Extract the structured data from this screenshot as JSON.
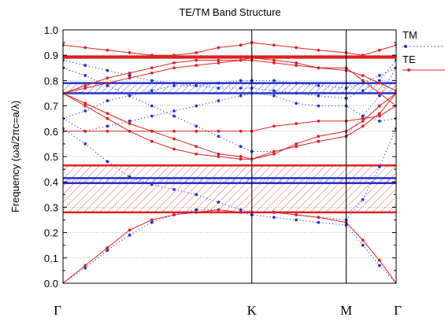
{
  "chart_data": {
    "type": "line",
    "title": "TE/TM Band Structure",
    "ylabel": "Frequency (ωa/2πc=a/λ)",
    "xlabel": "",
    "k_path": [
      "Γ",
      "K",
      "M",
      "Γ"
    ],
    "k_path_positions": [
      0,
      0.5667,
      0.85,
      1.0
    ],
    "ylim": [
      0.0,
      1.0
    ],
    "yticks": [
      "0.0",
      "0.1",
      "0.2",
      "0.3",
      "0.4",
      "0.5",
      "0.6",
      "0.7",
      "0.8",
      "0.9",
      "1.0"
    ],
    "grid": true,
    "legend_position": "right",
    "x": [
      0,
      0.0667,
      0.1333,
      0.2,
      0.2667,
      0.3333,
      0.4,
      0.4667,
      0.5333,
      0.5667,
      0.6333,
      0.7,
      0.7667,
      0.85,
      0.9,
      0.95,
      1.0
    ],
    "series": [
      {
        "name": "TM",
        "color": "#2233dd",
        "style": "dotted",
        "bands": [
          [
            0.0,
            0.06,
            0.13,
            0.19,
            0.24,
            0.27,
            0.29,
            0.29,
            0.28,
            0.27,
            0.26,
            0.25,
            0.24,
            0.23,
            0.15,
            0.07,
            0.0
          ],
          [
            0.61,
            0.55,
            0.48,
            0.42,
            0.39,
            0.37,
            0.35,
            0.32,
            0.29,
            0.28,
            0.28,
            0.27,
            0.26,
            0.25,
            0.33,
            0.46,
            0.61
          ],
          [
            0.65,
            0.6,
            0.62,
            0.64,
            0.66,
            0.68,
            0.7,
            0.72,
            0.74,
            0.75,
            0.74,
            0.71,
            0.7,
            0.7,
            0.66,
            0.64,
            0.65
          ],
          [
            0.65,
            0.68,
            0.72,
            0.74,
            0.76,
            0.78,
            0.78,
            0.79,
            0.8,
            0.8,
            0.8,
            0.79,
            0.78,
            0.77,
            0.79,
            0.82,
            0.85
          ],
          [
            0.85,
            0.82,
            0.78,
            0.74,
            0.7,
            0.66,
            0.62,
            0.58,
            0.54,
            0.52,
            0.52,
            0.54,
            0.56,
            0.58,
            0.66,
            0.74,
            0.85
          ],
          [
            0.88,
            0.86,
            0.84,
            0.82,
            0.8,
            0.79,
            0.78,
            0.77,
            0.77,
            0.77,
            0.76,
            0.75,
            0.74,
            0.73,
            0.76,
            0.8,
            0.88
          ]
        ]
      },
      {
        "name": "TE",
        "color": "#dd2222",
        "style": "solid",
        "bands": [
          [
            0.0,
            0.07,
            0.14,
            0.21,
            0.25,
            0.27,
            0.28,
            0.29,
            0.28,
            0.28,
            0.28,
            0.27,
            0.26,
            0.24,
            0.17,
            0.09,
            0.0
          ],
          [
            0.75,
            0.7,
            0.65,
            0.6,
            0.56,
            0.53,
            0.51,
            0.5,
            0.49,
            0.49,
            0.52,
            0.54,
            0.56,
            0.58,
            0.62,
            0.67,
            0.75
          ],
          [
            0.75,
            0.71,
            0.67,
            0.63,
            0.6,
            0.57,
            0.54,
            0.51,
            0.5,
            0.49,
            0.51,
            0.55,
            0.58,
            0.6,
            0.64,
            0.7,
            0.75
          ],
          [
            0.6,
            0.6,
            0.6,
            0.6,
            0.6,
            0.6,
            0.6,
            0.6,
            0.6,
            0.6,
            0.62,
            0.63,
            0.64,
            0.64,
            0.65,
            0.66,
            0.7
          ],
          [
            0.75,
            0.78,
            0.81,
            0.83,
            0.85,
            0.87,
            0.88,
            0.88,
            0.88,
            0.88,
            0.87,
            0.86,
            0.85,
            0.85,
            0.8,
            0.75,
            0.7
          ],
          [
            0.75,
            0.77,
            0.79,
            0.81,
            0.83,
            0.85,
            0.86,
            0.87,
            0.88,
            0.89,
            0.88,
            0.87,
            0.85,
            0.84,
            0.82,
            0.79,
            0.76
          ],
          [
            0.94,
            0.93,
            0.92,
            0.91,
            0.9,
            0.9,
            0.91,
            0.93,
            0.94,
            0.95,
            0.94,
            0.93,
            0.92,
            0.91,
            0.9,
            0.92,
            0.94
          ]
        ]
      }
    ],
    "band_gaps": [
      {
        "polarization": "TE",
        "range": [
          0.28,
          0.465
        ]
      },
      {
        "polarization": "TM",
        "range": [
          0.395,
          0.415
        ]
      },
      {
        "polarization": "TM",
        "range": [
          0.75,
          0.79
        ]
      },
      {
        "polarization": "TE",
        "range": [
          0.89,
          0.895
        ]
      }
    ]
  }
}
